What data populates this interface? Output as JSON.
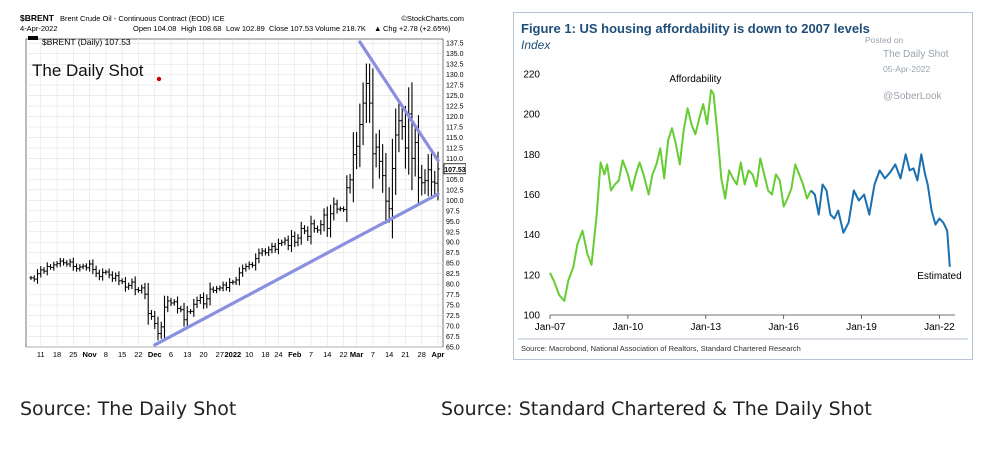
{
  "chart_data": [
    {
      "type": "ohlc",
      "header": {
        "symbol": "$BRENT",
        "title": "Brent Crude Oil - Continuous Contract (EOD) ICE",
        "source": "©StockCharts.com",
        "date": "4-Apr-2022",
        "open": "Open 104.08",
        "high": "High 108.68",
        "low": "Low 102.89",
        "close": "Close 107.53",
        "volume": "Volume 218.7K",
        "chg": "Chg +2.78 (+2.65%)",
        "chg_arrow": "▲",
        "legend": "$BRENT (Daily) 107.53",
        "last_value": "107.53"
      },
      "logo": "The Daily Shot",
      "ylim": [
        65,
        138.5
      ],
      "yticks": [
        65,
        67.5,
        70,
        72.5,
        75,
        77.5,
        80,
        82.5,
        85,
        87.5,
        90,
        92.5,
        95,
        97.5,
        100,
        102.5,
        105,
        107.5,
        110,
        112.5,
        115,
        117.5,
        120,
        122.5,
        125,
        127.5,
        130,
        132.5,
        135,
        137.5
      ],
      "xticks": [
        {
          "label": "11",
          "i": 3
        },
        {
          "label": "18",
          "i": 8
        },
        {
          "label": "25",
          "i": 13
        },
        {
          "label": "Nov",
          "i": 18
        },
        {
          "label": "8",
          "i": 23
        },
        {
          "label": "15",
          "i": 28
        },
        {
          "label": "22",
          "i": 33
        },
        {
          "label": "Dec",
          "i": 38
        },
        {
          "label": "6",
          "i": 43
        },
        {
          "label": "13",
          "i": 48
        },
        {
          "label": "20",
          "i": 53
        },
        {
          "label": "27",
          "i": 58
        },
        {
          "label": "2022",
          "i": 62
        },
        {
          "label": "10",
          "i": 67
        },
        {
          "label": "18",
          "i": 72
        },
        {
          "label": "24",
          "i": 76
        },
        {
          "label": "Feb",
          "i": 81
        },
        {
          "label": "7",
          "i": 86
        },
        {
          "label": "14",
          "i": 91
        },
        {
          "label": "22",
          "i": 96
        },
        {
          "label": "Mar",
          "i": 100
        },
        {
          "label": "7",
          "i": 105
        },
        {
          "label": "14",
          "i": 110
        },
        {
          "label": "21",
          "i": 115
        },
        {
          "label": "28",
          "i": 120
        },
        {
          "label": "Apr",
          "i": 125
        }
      ],
      "close_series": [
        81.5,
        81.2,
        82.5,
        83.4,
        83.1,
        84.2,
        84.0,
        84.6,
        84.9,
        85.5,
        85.1,
        84.8,
        85.3,
        84.2,
        83.7,
        84.1,
        84.3,
        83.9,
        84.8,
        83.5,
        82.6,
        81.8,
        82.8,
        82.9,
        82.2,
        81.4,
        82.0,
        80.8,
        80.6,
        79.3,
        79.7,
        80.5,
        78.7,
        78.5,
        79.1,
        77.6,
        73.0,
        72.3,
        70.6,
        68.2,
        69.8,
        74.5,
        76.0,
        75.5,
        75.8,
        74.2,
        73.9,
        71.5,
        73.4,
        73.5,
        75.2,
        76.1,
        76.8,
        75.3,
        76.5,
        78.8,
        78.5,
        78.9,
        79.1,
        79.8,
        79.2,
        80.4,
        80.5,
        81.0,
        82.7,
        83.7,
        84.2,
        84.7,
        84.5,
        86.1,
        87.4,
        87.9,
        87.5,
        88.2,
        89.0,
        88.3,
        89.7,
        90.0,
        90.5,
        89.2,
        91.4,
        90.0,
        91.0,
        93.3,
        92.7,
        91.4,
        94.4,
        93.3,
        92.9,
        94.2,
        96.5,
        93.3,
        96.8,
        99.1,
        97.9,
        98.0,
        97.8,
        103.0,
        104.9,
        110.9,
        112.9,
        118.1,
        123.2,
        127.9,
        123.2,
        111.1,
        112.7,
        109.3,
        105.9,
        99.8,
        98.0,
        107.6,
        115.6,
        119.0,
        117.6,
        112.5,
        120.6,
        110.0,
        113.8,
        105.4,
        104.2,
        104.7,
        107.3,
        104.4,
        104.1,
        107.5
      ],
      "trendlines": [
        {
          "from": {
            "i": 38,
            "y": 65.5
          },
          "to": {
            "i": 125,
            "y": 101.5
          }
        },
        {
          "from": {
            "i": 101,
            "y": 137.8
          },
          "to": {
            "i": 125,
            "y": 109.5
          }
        }
      ]
    },
    {
      "type": "line",
      "title": "Figure 1: US housing affordability is down to 2007 levels",
      "subtitle": "Index",
      "ylim": [
        100,
        222
      ],
      "yticks": [
        100,
        120,
        140,
        160,
        180,
        200,
        220
      ],
      "xlim": [
        2007.0,
        2022.6
      ],
      "xticks": [
        {
          "label": "Jan-07",
          "x": 2007.0
        },
        {
          "label": "Jan-10",
          "x": 2010.0
        },
        {
          "label": "Jan-13",
          "x": 2013.0
        },
        {
          "label": "Jan-16",
          "x": 2016.0
        },
        {
          "label": "Jan-19",
          "x": 2019.0
        },
        {
          "label": "Jan-22",
          "x": 2022.0
        }
      ],
      "series": [
        {
          "name": "Affordability",
          "color": "#66cc33",
          "x": [
            2007.0,
            2007.15,
            2007.35,
            2007.55,
            2007.7,
            2007.9,
            2008.05,
            2008.25,
            2008.45,
            2008.6,
            2008.8,
            2008.95,
            2009.1,
            2009.2,
            2009.35,
            2009.5,
            2009.65,
            2009.8,
            2010.0,
            2010.15,
            2010.3,
            2010.45,
            2010.6,
            2010.8,
            2010.95,
            2011.1,
            2011.25,
            2011.4,
            2011.55,
            2011.7,
            2011.85,
            2012.0,
            2012.15,
            2012.3,
            2012.45,
            2012.6,
            2012.75,
            2012.9,
            2013.05,
            2013.2,
            2013.3,
            2013.45,
            2013.6,
            2013.75,
            2013.9,
            2014.05,
            2014.2,
            2014.35,
            2014.5,
            2014.65,
            2014.8,
            2014.95,
            2015.1,
            2015.25,
            2015.4,
            2015.55,
            2015.7,
            2015.85,
            2016.0,
            2016.15,
            2016.3,
            2016.45,
            2016.6,
            2016.75,
            2016.9,
            2017.05
          ],
          "y": [
            121,
            117,
            110,
            107,
            117,
            124,
            135,
            142,
            130,
            125,
            150,
            176,
            170,
            175,
            162,
            165,
            167,
            177,
            170,
            162,
            170,
            176,
            170,
            160,
            170,
            175,
            183,
            168,
            187,
            193,
            185,
            175,
            192,
            203,
            195,
            190,
            198,
            205,
            195,
            212,
            210,
            190,
            168,
            158,
            172,
            168,
            165,
            176,
            165,
            172,
            170,
            164,
            178,
            170,
            162,
            160,
            170,
            167,
            154,
            158,
            163,
            175,
            170,
            165,
            158,
            162
          ]
        },
        {
          "name": "Estimated",
          "color": "#1a6fb0",
          "x": [
            2017.05,
            2017.2,
            2017.35,
            2017.5,
            2017.65,
            2017.8,
            2017.95,
            2018.1,
            2018.3,
            2018.5,
            2018.7,
            2018.9,
            2019.1,
            2019.3,
            2019.5,
            2019.7,
            2019.9,
            2020.1,
            2020.3,
            2020.5,
            2020.7,
            2020.85,
            2021.0,
            2021.15,
            2021.3,
            2021.45,
            2021.55,
            2021.7,
            2021.85,
            2022.0,
            2022.15,
            2022.3,
            2022.4
          ],
          "y": [
            162,
            160,
            150,
            165,
            162,
            150,
            148,
            152,
            141,
            146,
            162,
            157,
            160,
            150,
            165,
            172,
            168,
            171,
            175,
            168,
            180,
            172,
            173,
            167,
            180,
            170,
            165,
            152,
            145,
            148,
            146,
            142,
            124
          ]
        }
      ],
      "annotations": [
        "Affordability",
        "Estimated"
      ],
      "watermark": [
        "Posted on",
        "The Daily Shot",
        "05-Apr-2022",
        "@SoberLook"
      ],
      "source": "Source: Macrobond, National Association of Realtors, Standard Chartered Research"
    }
  ],
  "captions": {
    "left": "Source: The Daily Shot",
    "right": "Source: Standard Chartered & The Daily Shot"
  }
}
